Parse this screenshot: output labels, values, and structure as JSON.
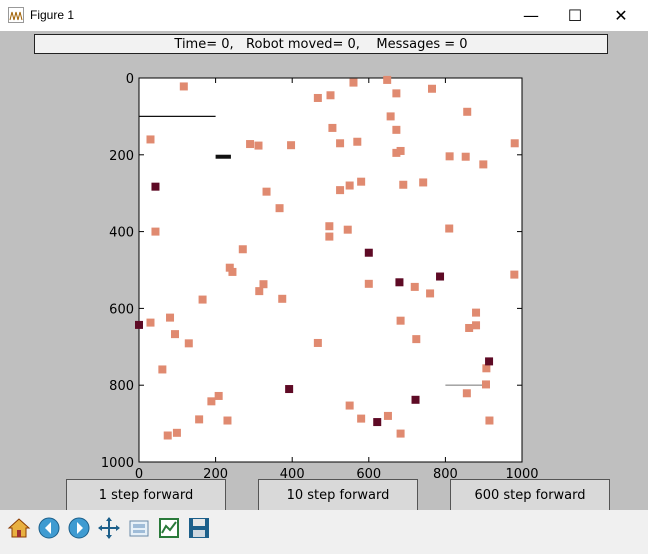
{
  "window": {
    "title": "Figure 1",
    "controls": {
      "minimize": "—",
      "maximize": "☐",
      "close": "✕"
    }
  },
  "status": {
    "text": "Time= 0,   Robot moved= 0,    Messages = 0"
  },
  "buttons": {
    "step1": "1 step forward",
    "step10": "10 step forward",
    "step600": "600 step forward"
  },
  "toolbar": {
    "icons": [
      "home-icon",
      "back-icon",
      "forward-icon",
      "pan-icon",
      "configure-subplots-icon",
      "edit-axis-icon",
      "save-icon"
    ]
  },
  "chart_data": {
    "type": "scatter",
    "xlim": [
      0,
      1000
    ],
    "ylim": [
      1000,
      0
    ],
    "xticks": [
      0,
      200,
      400,
      600,
      800,
      1000
    ],
    "yticks": [
      0,
      200,
      400,
      600,
      800,
      1000
    ],
    "grid": false,
    "colors": {
      "salmon": "#e08a70",
      "maroon": "#5e0a25",
      "wall_black": "#111111",
      "wall_gray": "#999999"
    },
    "series": [
      {
        "color": "salmon",
        "points": [
          [
            117,
            22
          ],
          [
            467,
            52
          ],
          [
            500,
            45
          ],
          [
            560,
            12
          ],
          [
            648,
            5
          ],
          [
            657,
            100
          ],
          [
            672,
            40
          ],
          [
            672,
            135
          ],
          [
            765,
            28
          ],
          [
            857,
            88
          ],
          [
            30,
            160
          ],
          [
            290,
            172
          ],
          [
            312,
            176
          ],
          [
            397,
            175
          ],
          [
            505,
            130
          ],
          [
            525,
            170
          ],
          [
            570,
            166
          ],
          [
            672,
            195
          ],
          [
            683,
            190
          ],
          [
            811,
            204
          ],
          [
            853,
            205
          ],
          [
            899,
            225
          ],
          [
            981,
            170
          ],
          [
            333,
            296
          ],
          [
            525,
            292
          ],
          [
            550,
            280
          ],
          [
            580,
            270
          ],
          [
            690,
            278
          ],
          [
            742,
            272
          ],
          [
            367,
            339
          ],
          [
            43,
            400
          ],
          [
            497,
            386
          ],
          [
            497,
            413
          ],
          [
            545,
            395
          ],
          [
            810,
            392
          ],
          [
            271,
            446
          ],
          [
            244,
            505
          ],
          [
            237,
            494
          ],
          [
            314,
            555
          ],
          [
            325,
            537
          ],
          [
            600,
            536
          ],
          [
            166,
            577
          ],
          [
            374,
            575
          ],
          [
            720,
            544
          ],
          [
            760,
            561
          ],
          [
            81,
            624
          ],
          [
            30,
            637
          ],
          [
            94,
            667
          ],
          [
            130,
            691
          ],
          [
            467,
            690
          ],
          [
            862,
            651
          ],
          [
            880,
            644
          ],
          [
            880,
            611
          ],
          [
            683,
            632
          ],
          [
            724,
            680
          ],
          [
            61,
            759
          ],
          [
            907,
            756
          ],
          [
            856,
            821
          ],
          [
            208,
            828
          ],
          [
            189,
            842
          ],
          [
            550,
            853
          ],
          [
            580,
            887
          ],
          [
            650,
            880
          ],
          [
            683,
            926
          ],
          [
            906,
            798
          ],
          [
            75,
            931
          ],
          [
            99,
            924
          ],
          [
            157,
            889
          ],
          [
            231,
            892
          ],
          [
            915,
            892
          ],
          [
            980,
            512
          ]
        ]
      },
      {
        "color": "maroon",
        "points": [
          [
            43,
            283
          ],
          [
            600,
            455
          ],
          [
            680,
            532
          ],
          [
            786,
            517
          ],
          [
            0,
            643
          ],
          [
            392,
            810
          ],
          [
            622,
            896
          ],
          [
            722,
            838
          ],
          [
            914,
            738
          ]
        ]
      }
    ],
    "walls": [
      {
        "from": [
          0,
          100
        ],
        "to": [
          200,
          100
        ],
        "color": "wall_black",
        "weight": "thin"
      },
      {
        "from": [
          200,
          205
        ],
        "to": [
          240,
          205
        ],
        "color": "wall_black",
        "weight": "thick"
      },
      {
        "from": [
          800,
          800
        ],
        "to": [
          910,
          800
        ],
        "color": "wall_gray",
        "weight": "thin"
      }
    ]
  }
}
